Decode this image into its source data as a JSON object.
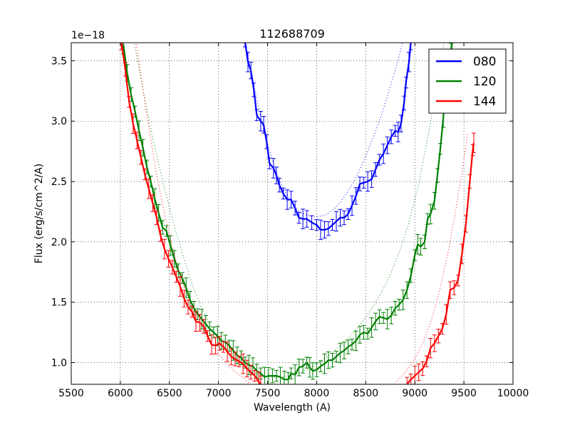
{
  "chart_data": {
    "type": "line",
    "title": "112688709",
    "xlabel": "Wavelength (A)",
    "ylabel": "Flux (erg/s/cm^2/A)",
    "y_offset_label": "1e−18",
    "xlim": [
      5500,
      10000
    ],
    "ylim": [
      0.82,
      3.65
    ],
    "xticks": [
      5500,
      6000,
      6500,
      7000,
      7500,
      8000,
      8500,
      9000,
      9500,
      10000
    ],
    "xtick_labels": [
      "5500",
      "6000",
      "6500",
      "7000",
      "7500",
      "8000",
      "8500",
      "9000",
      "9500",
      "10000"
    ],
    "yticks": [
      1.0,
      1.5,
      2.0,
      2.5,
      3.0,
      3.5
    ],
    "ytick_labels": [
      "1.0",
      "1.5",
      "2.0",
      "2.5",
      "3.0",
      "3.5"
    ],
    "grid": true,
    "legend_position": "top-right",
    "series": [
      {
        "name": "080",
        "color": "#0000ff",
        "points": [
          [
            7270,
            3.66
          ],
          [
            7300,
            3.49
          ],
          [
            7330,
            3.42
          ],
          [
            7360,
            3.26
          ],
          [
            7390,
            3.05
          ],
          [
            7430,
            3.0
          ],
          [
            7460,
            2.97
          ],
          [
            7490,
            2.83
          ],
          [
            7520,
            2.65
          ],
          [
            7560,
            2.61
          ],
          [
            7590,
            2.55
          ],
          [
            7620,
            2.47
          ],
          [
            7660,
            2.4
          ],
          [
            7700,
            2.35
          ],
          [
            7740,
            2.35
          ],
          [
            7780,
            2.28
          ],
          [
            7820,
            2.2
          ],
          [
            7860,
            2.19
          ],
          [
            7900,
            2.19
          ],
          [
            7950,
            2.16
          ],
          [
            8000,
            2.14
          ],
          [
            8040,
            2.1
          ],
          [
            8080,
            2.1
          ],
          [
            8120,
            2.11
          ],
          [
            8160,
            2.14
          ],
          [
            8200,
            2.17
          ],
          [
            8240,
            2.2
          ],
          [
            8280,
            2.2
          ],
          [
            8320,
            2.23
          ],
          [
            8360,
            2.3
          ],
          [
            8400,
            2.38
          ],
          [
            8440,
            2.48
          ],
          [
            8480,
            2.49
          ],
          [
            8520,
            2.5
          ],
          [
            8560,
            2.52
          ],
          [
            8600,
            2.6
          ],
          [
            8640,
            2.68
          ],
          [
            8680,
            2.73
          ],
          [
            8720,
            2.8
          ],
          [
            8760,
            2.87
          ],
          [
            8800,
            2.92
          ],
          [
            8830,
            2.91
          ],
          [
            8860,
            2.98
          ],
          [
            8890,
            3.15
          ],
          [
            8910,
            3.32
          ],
          [
            8940,
            3.49
          ],
          [
            8960,
            3.66
          ]
        ],
        "fit_points": [
          [
            7270,
            3.66
          ],
          [
            7340,
            3.38
          ],
          [
            7400,
            3.14
          ],
          [
            7470,
            2.9
          ],
          [
            7540,
            2.7
          ],
          [
            7600,
            2.55
          ],
          [
            7660,
            2.44
          ],
          [
            7720,
            2.35
          ],
          [
            7780,
            2.29
          ],
          [
            7840,
            2.24
          ],
          [
            7900,
            2.22
          ],
          [
            7960,
            2.21
          ],
          [
            8020,
            2.21
          ],
          [
            8080,
            2.22
          ],
          [
            8140,
            2.25
          ],
          [
            8200,
            2.29
          ],
          [
            8260,
            2.35
          ],
          [
            8320,
            2.42
          ],
          [
            8380,
            2.5
          ],
          [
            8440,
            2.6
          ],
          [
            8500,
            2.71
          ],
          [
            8560,
            2.83
          ],
          [
            8620,
            2.96
          ],
          [
            8680,
            3.1
          ],
          [
            8740,
            3.26
          ],
          [
            8800,
            3.42
          ],
          [
            8860,
            3.6
          ],
          [
            8880,
            3.66
          ]
        ]
      },
      {
        "name": "120",
        "color": "#008000",
        "points": [
          [
            6030,
            3.64
          ],
          [
            6070,
            3.4
          ],
          [
            6110,
            3.22
          ],
          [
            6150,
            3.08
          ],
          [
            6190,
            2.92
          ],
          [
            6230,
            2.78
          ],
          [
            6270,
            2.62
          ],
          [
            6310,
            2.5
          ],
          [
            6350,
            2.36
          ],
          [
            6390,
            2.24
          ],
          [
            6430,
            2.12
          ],
          [
            6470,
            2.09
          ],
          [
            6510,
            1.97
          ],
          [
            6550,
            1.86
          ],
          [
            6590,
            1.76
          ],
          [
            6630,
            1.7
          ],
          [
            6670,
            1.62
          ],
          [
            6710,
            1.52
          ],
          [
            6750,
            1.45
          ],
          [
            6790,
            1.4
          ],
          [
            6830,
            1.36
          ],
          [
            6870,
            1.32
          ],
          [
            6910,
            1.28
          ],
          [
            6950,
            1.25
          ],
          [
            6990,
            1.22
          ],
          [
            7030,
            1.18
          ],
          [
            7070,
            1.17
          ],
          [
            7110,
            1.14
          ],
          [
            7150,
            1.1
          ],
          [
            7190,
            1.06
          ],
          [
            7230,
            1.04
          ],
          [
            7270,
            1.0
          ],
          [
            7310,
            0.98
          ],
          [
            7350,
            0.97
          ],
          [
            7390,
            0.93
          ],
          [
            7430,
            0.91
          ],
          [
            7470,
            0.88
          ],
          [
            7510,
            0.89
          ],
          [
            7550,
            0.89
          ],
          [
            7590,
            0.89
          ],
          [
            7630,
            0.88
          ],
          [
            7670,
            0.86
          ],
          [
            7710,
            0.86
          ],
          [
            7740,
            0.91
          ],
          [
            7780,
            0.9
          ],
          [
            7820,
            0.96
          ],
          [
            7860,
            0.97
          ],
          [
            7900,
            1.0
          ],
          [
            7930,
            0.96
          ],
          [
            7960,
            0.93
          ],
          [
            8000,
            0.94
          ],
          [
            8040,
            0.97
          ],
          [
            8080,
            0.99
          ],
          [
            8120,
            1.02
          ],
          [
            8160,
            1.02
          ],
          [
            8200,
            1.05
          ],
          [
            8240,
            1.08
          ],
          [
            8280,
            1.1
          ],
          [
            8320,
            1.13
          ],
          [
            8360,
            1.15
          ],
          [
            8400,
            1.18
          ],
          [
            8440,
            1.23
          ],
          [
            8480,
            1.25
          ],
          [
            8520,
            1.24
          ],
          [
            8560,
            1.29
          ],
          [
            8600,
            1.34
          ],
          [
            8640,
            1.38
          ],
          [
            8680,
            1.37
          ],
          [
            8720,
            1.36
          ],
          [
            8760,
            1.39
          ],
          [
            8800,
            1.45
          ],
          [
            8840,
            1.48
          ],
          [
            8880,
            1.52
          ],
          [
            8920,
            1.6
          ],
          [
            8960,
            1.72
          ],
          [
            9000,
            1.89
          ],
          [
            9030,
            1.98
          ],
          [
            9060,
            1.96
          ],
          [
            9100,
            2.0
          ],
          [
            9130,
            2.19
          ],
          [
            9160,
            2.23
          ],
          [
            9200,
            2.34
          ],
          [
            9230,
            2.55
          ],
          [
            9260,
            2.77
          ],
          [
            9290,
            3.03
          ],
          [
            9310,
            3.23
          ],
          [
            9340,
            3.38
          ],
          [
            9370,
            3.6
          ],
          [
            9380,
            3.66
          ]
        ],
        "fit_points": [
          [
            6140,
            3.66
          ],
          [
            6240,
            3.22
          ],
          [
            6340,
            2.82
          ],
          [
            6440,
            2.48
          ],
          [
            6540,
            2.16
          ],
          [
            6640,
            1.88
          ],
          [
            6740,
            1.63
          ],
          [
            6840,
            1.43
          ],
          [
            6940,
            1.27
          ],
          [
            7040,
            1.14
          ],
          [
            7140,
            1.04
          ],
          [
            7240,
            0.97
          ],
          [
            7340,
            0.92
          ],
          [
            7440,
            0.89
          ],
          [
            7540,
            0.88
          ],
          [
            7640,
            0.88
          ],
          [
            7740,
            0.89
          ],
          [
            7840,
            0.92
          ],
          [
            7940,
            0.96
          ],
          [
            8040,
            1.01
          ],
          [
            8140,
            1.07
          ],
          [
            8240,
            1.14
          ],
          [
            8340,
            1.22
          ],
          [
            8440,
            1.31
          ],
          [
            8540,
            1.42
          ],
          [
            8640,
            1.55
          ],
          [
            8740,
            1.71
          ],
          [
            8840,
            1.91
          ],
          [
            8940,
            2.16
          ],
          [
            9040,
            2.48
          ],
          [
            9140,
            2.9
          ],
          [
            9240,
            3.36
          ],
          [
            9300,
            3.66
          ]
        ]
      },
      {
        "name": "144",
        "color": "#ff0000",
        "points": [
          [
            6010,
            3.66
          ],
          [
            6050,
            3.43
          ],
          [
            6090,
            3.16
          ],
          [
            6130,
            2.98
          ],
          [
            6170,
            2.84
          ],
          [
            6210,
            2.7
          ],
          [
            6250,
            2.56
          ],
          [
            6290,
            2.44
          ],
          [
            6330,
            2.32
          ],
          [
            6370,
            2.2
          ],
          [
            6410,
            2.05
          ],
          [
            6450,
            1.94
          ],
          [
            6490,
            1.86
          ],
          [
            6530,
            1.79
          ],
          [
            6570,
            1.71
          ],
          [
            6610,
            1.63
          ],
          [
            6650,
            1.53
          ],
          [
            6690,
            1.46
          ],
          [
            6730,
            1.42
          ],
          [
            6770,
            1.34
          ],
          [
            6810,
            1.33
          ],
          [
            6850,
            1.3
          ],
          [
            6890,
            1.22
          ],
          [
            6930,
            1.15
          ],
          [
            6970,
            1.14
          ],
          [
            7010,
            1.16
          ],
          [
            7050,
            1.13
          ],
          [
            7090,
            1.09
          ],
          [
            7130,
            1.05
          ],
          [
            7170,
            1.03
          ],
          [
            7210,
            1.01
          ],
          [
            7250,
            0.99
          ],
          [
            7290,
            0.95
          ],
          [
            7330,
            0.92
          ],
          [
            7370,
            0.89
          ],
          [
            7410,
            0.84
          ],
          [
            7430,
            0.82
          ]
        ],
        "points2": [
          [
            8920,
            0.82
          ],
          [
            8960,
            0.86
          ],
          [
            9000,
            0.89
          ],
          [
            9040,
            0.92
          ],
          [
            9080,
            0.95
          ],
          [
            9120,
            1.01
          ],
          [
            9160,
            1.12
          ],
          [
            9200,
            1.16
          ],
          [
            9240,
            1.22
          ],
          [
            9280,
            1.28
          ],
          [
            9320,
            1.4
          ],
          [
            9360,
            1.6
          ],
          [
            9400,
            1.62
          ],
          [
            9440,
            1.68
          ],
          [
            9480,
            1.9
          ],
          [
            9520,
            2.15
          ],
          [
            9560,
            2.5
          ],
          [
            9590,
            2.76
          ],
          [
            9600,
            2.82
          ]
        ],
        "fit_points": [
          [
            6160,
            3.66
          ],
          [
            6260,
            3.1
          ],
          [
            6360,
            2.6
          ],
          [
            6460,
            2.19
          ],
          [
            6560,
            1.86
          ],
          [
            6660,
            1.6
          ],
          [
            6760,
            1.4
          ],
          [
            6860,
            1.24
          ],
          [
            6960,
            1.11
          ],
          [
            7060,
            1.01
          ],
          [
            7160,
            0.93
          ],
          [
            7260,
            0.87
          ],
          [
            7320,
            0.82
          ]
        ],
        "fit_points2": [
          [
            8780,
            0.82
          ],
          [
            8860,
            0.88
          ],
          [
            8940,
            0.96
          ],
          [
            9020,
            1.06
          ],
          [
            9100,
            1.2
          ],
          [
            9180,
            1.38
          ],
          [
            9260,
            1.62
          ],
          [
            9340,
            1.92
          ],
          [
            9420,
            2.28
          ],
          [
            9500,
            2.68
          ],
          [
            9540,
            2.9
          ]
        ]
      }
    ]
  }
}
